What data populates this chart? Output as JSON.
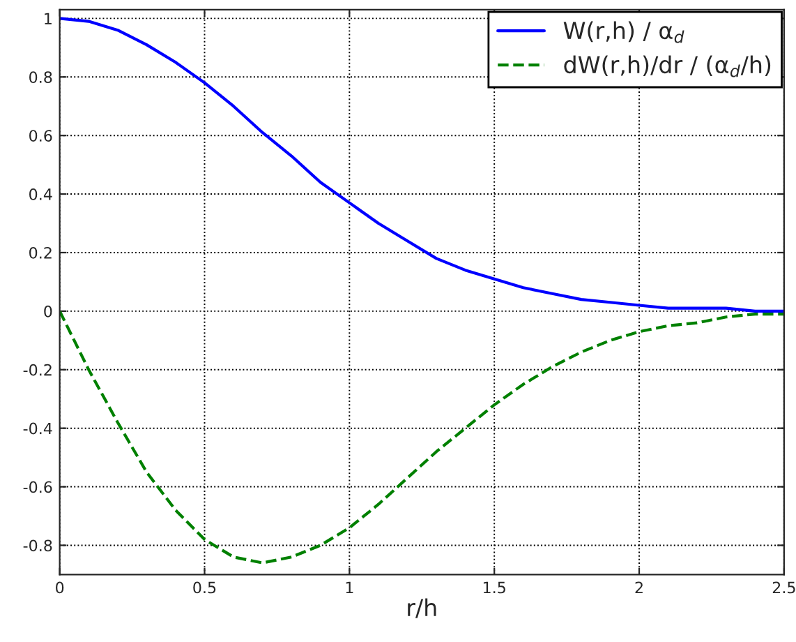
{
  "chart_data": {
    "type": "line",
    "xlabel": "r/h",
    "x": [
      0,
      0.1,
      0.2,
      0.3,
      0.4,
      0.5,
      0.6,
      0.7,
      0.8,
      0.9,
      1,
      1.1,
      1.2,
      1.3,
      1.4,
      1.5,
      1.6,
      1.7,
      1.8,
      1.9,
      2,
      2.1,
      2.2,
      2.3,
      2.4,
      2.5
    ],
    "series": [
      {
        "name": "W(r,h) / α$_{d}$",
        "color": "#0000ff",
        "line_style": "solid",
        "values": [
          1,
          0.99,
          0.96,
          0.91,
          0.85,
          0.78,
          0.7,
          0.61,
          0.53,
          0.44,
          0.37,
          0.3,
          0.24,
          0.18,
          0.14,
          0.11,
          0.08,
          0.06,
          0.04,
          0.03,
          0.02,
          0.01,
          0.01,
          0.01,
          0,
          0
        ]
      },
      {
        "name": "dW(r,h)/dr / (α$_{d}$/h)",
        "color": "#008000",
        "line_style": "dashed",
        "values": [
          0,
          -0.2,
          -0.38,
          -0.55,
          -0.68,
          -0.78,
          -0.84,
          -0.86,
          -0.84,
          -0.8,
          -0.74,
          -0.66,
          -0.57,
          -0.48,
          -0.4,
          -0.32,
          -0.25,
          -0.19,
          -0.14,
          -0.1,
          -0.07,
          -0.05,
          -0.04,
          -0.02,
          -0.01,
          -0.01
        ]
      }
    ],
    "xlim": [
      0,
      2.5
    ],
    "ylim": [
      -0.9,
      1.03
    ],
    "xticks": [
      0,
      0.5,
      1,
      1.5,
      2,
      2.5
    ],
    "yticks": [
      -0.8,
      -0.6,
      -0.4,
      -0.2,
      0,
      0.2,
      0.4,
      0.6,
      0.8,
      1
    ],
    "grid": true,
    "legend": "top right",
    "marker": "none"
  }
}
